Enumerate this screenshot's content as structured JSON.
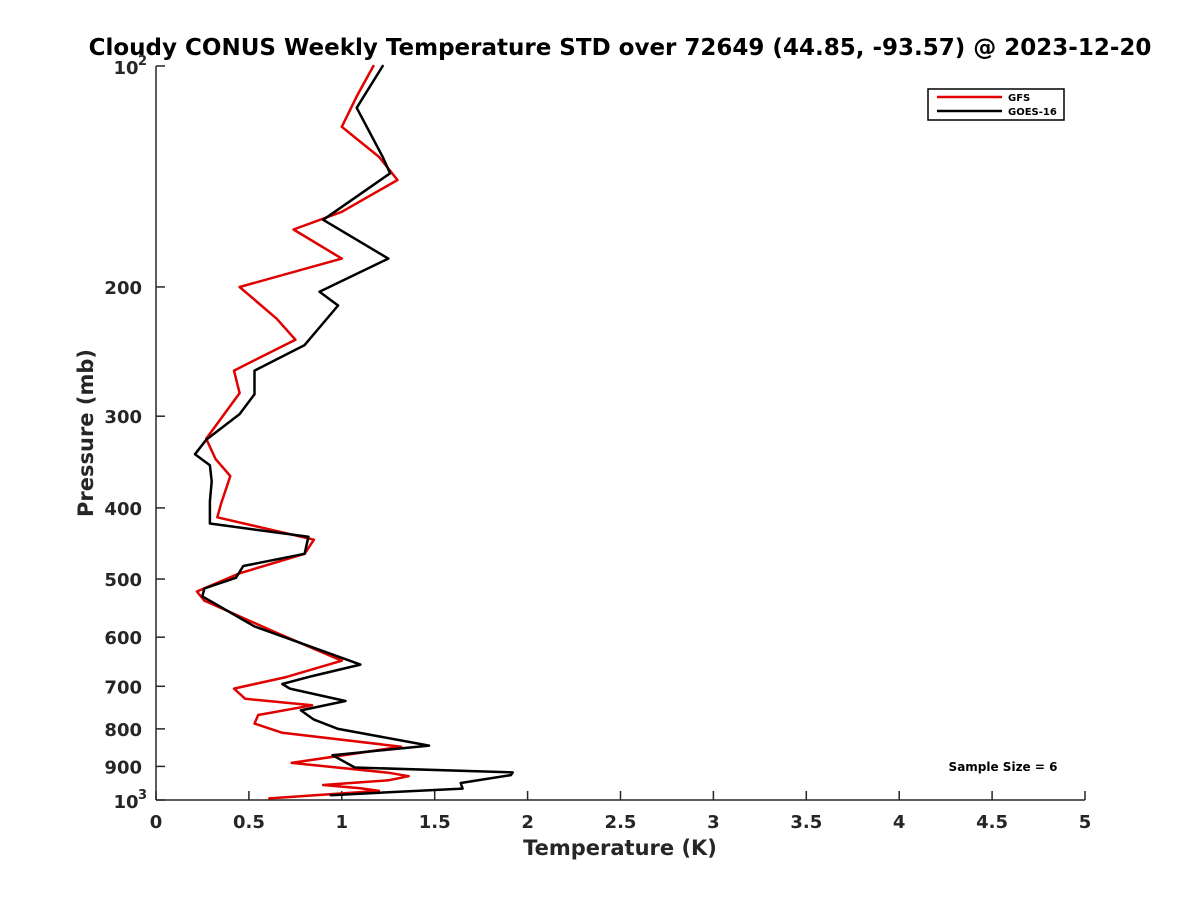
{
  "chart_data": {
    "type": "line",
    "title": "Cloudy CONUS Weekly Temperature STD over 72649 (44.85, -93.57) @ 2023-12-20",
    "xlabel": "Temperature (K)",
    "ylabel": "Pressure (mb)",
    "xlim": [
      0,
      5
    ],
    "ylim": [
      100,
      1000
    ],
    "y_scale": "log",
    "y_reversed": true,
    "grid": false,
    "legend_position": "top-right",
    "x_ticks": [
      {
        "value": 0,
        "label": "0"
      },
      {
        "value": 0.5,
        "label": "0.5"
      },
      {
        "value": 1,
        "label": "1"
      },
      {
        "value": 1.5,
        "label": "1.5"
      },
      {
        "value": 2,
        "label": "2"
      },
      {
        "value": 2.5,
        "label": "2.5"
      },
      {
        "value": 3,
        "label": "3"
      },
      {
        "value": 3.5,
        "label": "3.5"
      },
      {
        "value": 4,
        "label": "4"
      },
      {
        "value": 4.5,
        "label": "4.5"
      },
      {
        "value": 5,
        "label": "5"
      }
    ],
    "y_ticks": [
      {
        "value": 100,
        "base": "10",
        "exp": "2"
      },
      {
        "value": 200,
        "label": "200"
      },
      {
        "value": 300,
        "label": "300"
      },
      {
        "value": 400,
        "label": "400"
      },
      {
        "value": 500,
        "label": "500"
      },
      {
        "value": 600,
        "label": "600"
      },
      {
        "value": 700,
        "label": "700"
      },
      {
        "value": 800,
        "label": "800"
      },
      {
        "value": 900,
        "label": "900"
      },
      {
        "value": 1000,
        "base": "10",
        "exp": "3"
      }
    ],
    "annotation": "Sample Size = 6",
    "series": [
      {
        "name": "GFS",
        "color": "#e00000",
        "points": [
          [
            1.17,
            100
          ],
          [
            1.08,
            110
          ],
          [
            1.0,
            121
          ],
          [
            1.2,
            133
          ],
          [
            1.3,
            143
          ],
          [
            1.0,
            158
          ],
          [
            0.74,
            167
          ],
          [
            1.0,
            183
          ],
          [
            0.45,
            200
          ],
          [
            0.65,
            221
          ],
          [
            0.75,
            236
          ],
          [
            0.42,
            260
          ],
          [
            0.45,
            279
          ],
          [
            0.27,
            322
          ],
          [
            0.32,
            343
          ],
          [
            0.4,
            362
          ],
          [
            0.35,
            395
          ],
          [
            0.33,
            412
          ],
          [
            0.85,
            442
          ],
          [
            0.8,
            462
          ],
          [
            0.45,
            491
          ],
          [
            0.22,
            520
          ],
          [
            0.26,
            535
          ],
          [
            0.65,
            592
          ],
          [
            1.0,
            646
          ],
          [
            0.7,
            680
          ],
          [
            0.42,
            705
          ],
          [
            0.48,
            728
          ],
          [
            0.84,
            743
          ],
          [
            0.55,
            766
          ],
          [
            0.53,
            787
          ],
          [
            0.68,
            810
          ],
          [
            1.32,
            846
          ],
          [
            0.73,
            890
          ],
          [
            1.25,
            918
          ],
          [
            1.36,
            928
          ],
          [
            1.25,
            940
          ],
          [
            0.9,
            954
          ],
          [
            1.1,
            964
          ],
          [
            1.2,
            972
          ],
          [
            0.61,
            995
          ]
        ]
      },
      {
        "name": "GOES-16",
        "color": "#000000",
        "points": [
          [
            1.22,
            100
          ],
          [
            1.08,
            114
          ],
          [
            1.22,
            133
          ],
          [
            1.26,
            140
          ],
          [
            0.9,
            162
          ],
          [
            1.25,
            183
          ],
          [
            0.88,
            203
          ],
          [
            0.98,
            212
          ],
          [
            0.8,
            240
          ],
          [
            0.53,
            260
          ],
          [
            0.53,
            280
          ],
          [
            0.45,
            298
          ],
          [
            0.27,
            323
          ],
          [
            0.21,
            338
          ],
          [
            0.29,
            350
          ],
          [
            0.3,
            368
          ],
          [
            0.29,
            392
          ],
          [
            0.29,
            420
          ],
          [
            0.82,
            438
          ],
          [
            0.8,
            462
          ],
          [
            0.47,
            480
          ],
          [
            0.43,
            498
          ],
          [
            0.26,
            515
          ],
          [
            0.25,
            528
          ],
          [
            0.53,
            580
          ],
          [
            1.1,
            654
          ],
          [
            0.84,
            678
          ],
          [
            0.68,
            695
          ],
          [
            0.72,
            705
          ],
          [
            1.02,
            733
          ],
          [
            0.78,
            755
          ],
          [
            0.85,
            777
          ],
          [
            0.98,
            800
          ],
          [
            1.47,
            843
          ],
          [
            0.95,
            869
          ],
          [
            1.07,
            903
          ],
          [
            1.92,
            917
          ],
          [
            1.91,
            925
          ],
          [
            1.64,
            948
          ],
          [
            1.65,
            965
          ],
          [
            0.94,
            985
          ]
        ]
      }
    ]
  }
}
